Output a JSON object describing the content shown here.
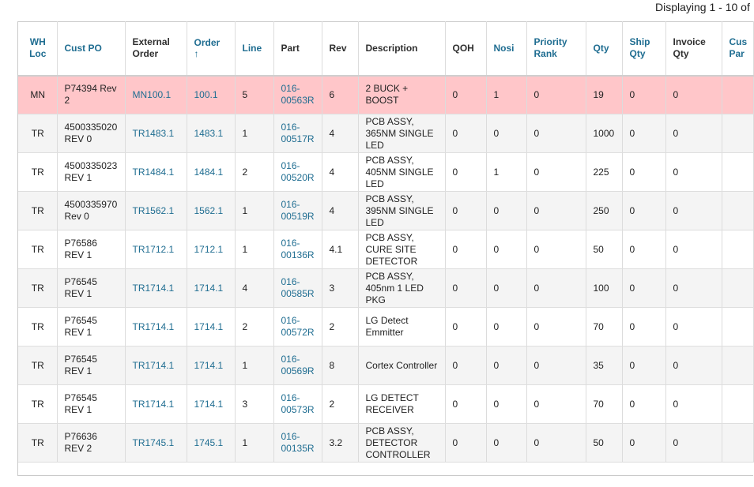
{
  "paging": {
    "text": "Displaying 1 - 10 of"
  },
  "columns": [
    {
      "key": "wh_loc",
      "label": "WH Loc",
      "sortable": true
    },
    {
      "key": "cust_po",
      "label": "Cust PO",
      "sortable": true
    },
    {
      "key": "external_order",
      "label": "External Order",
      "sortable": false
    },
    {
      "key": "order",
      "label": "Order",
      "sortable": true,
      "sort": "↑"
    },
    {
      "key": "line",
      "label": "Line",
      "sortable": true
    },
    {
      "key": "part",
      "label": "Part",
      "sortable": false
    },
    {
      "key": "rev",
      "label": "Rev",
      "sortable": false
    },
    {
      "key": "description",
      "label": "Description",
      "sortable": false
    },
    {
      "key": "qoh",
      "label": "QOH",
      "sortable": false
    },
    {
      "key": "nosi",
      "label": "Nosi",
      "sortable": true
    },
    {
      "key": "priority_rank",
      "label": "Priority Rank",
      "sortable": true
    },
    {
      "key": "qty",
      "label": "Qty",
      "sortable": true
    },
    {
      "key": "ship_qty",
      "label": "Ship Qty",
      "sortable": true
    },
    {
      "key": "invoice_qty",
      "label": "Invoice Qty",
      "sortable": false
    },
    {
      "key": "cust_part",
      "label": "Cus Par",
      "sortable": true
    }
  ],
  "rows": [
    {
      "wh_loc": "MN",
      "cust_po": "P74394 Rev 2",
      "external_order": "MN100.1",
      "order": "100.1",
      "line": "5",
      "part": "016-00563R",
      "rev": "6",
      "description": "2 BUCK + BOOST",
      "qoh": "0",
      "nosi": "1",
      "priority_rank": "0",
      "qty": "19",
      "ship_qty": "0",
      "invoice_qty": "0",
      "cust_part": "",
      "highlight": true
    },
    {
      "wh_loc": "TR",
      "cust_po": "4500335020 REV 0",
      "external_order": "TR1483.1",
      "order": "1483.1",
      "line": "1",
      "part": "016-00517R",
      "rev": "4",
      "description": "PCB ASSY, 365NM SINGLE LED",
      "qoh": "0",
      "nosi": "0",
      "priority_rank": "0",
      "qty": "1000",
      "ship_qty": "0",
      "invoice_qty": "0",
      "cust_part": ""
    },
    {
      "wh_loc": "TR",
      "cust_po": "4500335023 REV 1",
      "external_order": "TR1484.1",
      "order": "1484.1",
      "line": "2",
      "part": "016-00520R",
      "rev": "4",
      "description": "PCB ASSY, 405NM SINGLE LED",
      "qoh": "0",
      "nosi": "1",
      "priority_rank": "0",
      "qty": "225",
      "ship_qty": "0",
      "invoice_qty": "0",
      "cust_part": ""
    },
    {
      "wh_loc": "TR",
      "cust_po": "4500335970 Rev 0",
      "external_order": "TR1562.1",
      "order": "1562.1",
      "line": "1",
      "part": "016-00519R",
      "rev": "4",
      "description": "PCB ASSY, 395NM SINGLE LED",
      "qoh": "0",
      "nosi": "0",
      "priority_rank": "0",
      "qty": "250",
      "ship_qty": "0",
      "invoice_qty": "0",
      "cust_part": ""
    },
    {
      "wh_loc": "TR",
      "cust_po": "P76586 REV 1",
      "external_order": "TR1712.1",
      "order": "1712.1",
      "line": "1",
      "part": "016-00136R",
      "rev": "4.1",
      "description": "PCB ASSY, CURE SITE DETECTOR",
      "qoh": "0",
      "nosi": "0",
      "priority_rank": "0",
      "qty": "50",
      "ship_qty": "0",
      "invoice_qty": "0",
      "cust_part": ""
    },
    {
      "wh_loc": "TR",
      "cust_po": "P76545 REV 1",
      "external_order": "TR1714.1",
      "order": "1714.1",
      "line": "4",
      "part": "016-00585R",
      "rev": "3",
      "description": "PCB ASSY, 405nm 1 LED PKG",
      "qoh": "0",
      "nosi": "0",
      "priority_rank": "0",
      "qty": "100",
      "ship_qty": "0",
      "invoice_qty": "0",
      "cust_part": ""
    },
    {
      "wh_loc": "TR",
      "cust_po": "P76545 REV 1",
      "external_order": "TR1714.1",
      "order": "1714.1",
      "line": "2",
      "part": "016-00572R",
      "rev": "2",
      "description": "LG Detect Emmitter",
      "qoh": "0",
      "nosi": "0",
      "priority_rank": "0",
      "qty": "70",
      "ship_qty": "0",
      "invoice_qty": "0",
      "cust_part": ""
    },
    {
      "wh_loc": "TR",
      "cust_po": "P76545 REV 1",
      "external_order": "TR1714.1",
      "order": "1714.1",
      "line": "1",
      "part": "016-00569R",
      "rev": "8",
      "description": "Cortex Controller",
      "qoh": "0",
      "nosi": "0",
      "priority_rank": "0",
      "qty": "35",
      "ship_qty": "0",
      "invoice_qty": "0",
      "cust_part": ""
    },
    {
      "wh_loc": "TR",
      "cust_po": "P76545 REV 1",
      "external_order": "TR1714.1",
      "order": "1714.1",
      "line": "3",
      "part": "016-00573R",
      "rev": "2",
      "description": "LG DETECT RECEIVER",
      "qoh": "0",
      "nosi": "0",
      "priority_rank": "0",
      "qty": "70",
      "ship_qty": "0",
      "invoice_qty": "0",
      "cust_part": ""
    },
    {
      "wh_loc": "TR",
      "cust_po": "P76636 REV 2",
      "external_order": "TR1745.1",
      "order": "1745.1",
      "line": "1",
      "part": "016-00135R",
      "rev": "3.2",
      "description": "PCB ASSY, DETECTOR CONTROLLER",
      "qoh": "0",
      "nosi": "0",
      "priority_rank": "0",
      "qty": "50",
      "ship_qty": "0",
      "invoice_qty": "0",
      "cust_part": ""
    }
  ]
}
